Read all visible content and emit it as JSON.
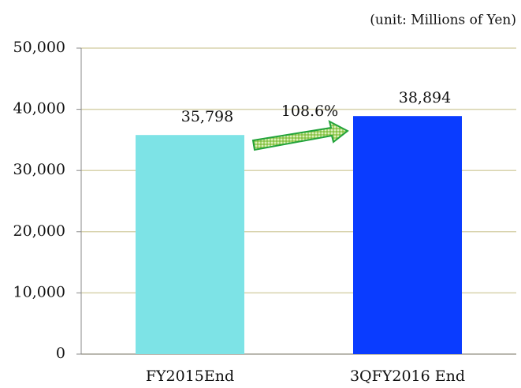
{
  "chart_data": {
    "type": "bar",
    "unit_note": "(unit: Millions of Yen)",
    "categories": [
      "FY2015End",
      "3QFY2016 End"
    ],
    "values": [
      35798,
      38894
    ],
    "value_labels": [
      "35,798",
      "38,894"
    ],
    "colors": [
      "#7de3e6",
      "#0a3cff"
    ],
    "annotation": "108.6%",
    "ylim": [
      0,
      50000
    ],
    "yticks": [
      0,
      {
        "value": 10000,
        "label": "10,000"
      },
      {
        "value": 20000,
        "label": "20,000"
      },
      {
        "value": 30000,
        "label": "30,000"
      },
      {
        "value": 40000,
        "label": "40,000"
      },
      {
        "value": 50000,
        "label": "50,000"
      }
    ],
    "grid": true
  }
}
